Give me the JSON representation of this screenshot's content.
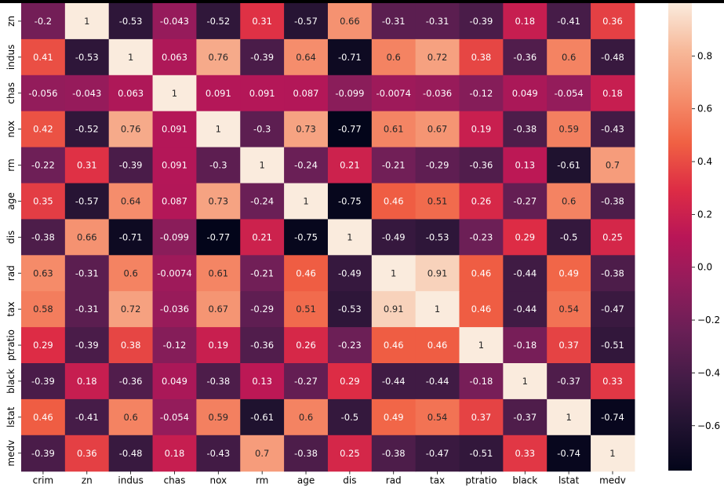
{
  "chart_data": {
    "type": "heatmap",
    "title": "",
    "xlabel": "",
    "ylabel": "",
    "x_labels": [
      "crim",
      "zn",
      "indus",
      "chas",
      "nox",
      "rm",
      "age",
      "dis",
      "rad",
      "tax",
      "ptratio",
      "black",
      "lstat",
      "medv"
    ],
    "y_labels": [
      "zn",
      "indus",
      "chas",
      "nox",
      "rm",
      "age",
      "dis",
      "rad",
      "tax",
      "ptratio",
      "black",
      "lstat",
      "medv"
    ],
    "values": [
      [
        "-0.2",
        "1",
        "-0.53",
        "-0.043",
        "-0.52",
        "0.31",
        "-0.57",
        "0.66",
        "-0.31",
        "-0.31",
        "-0.39",
        "0.18",
        "-0.41",
        "0.36"
      ],
      [
        "0.41",
        "-0.53",
        "1",
        "0.063",
        "0.76",
        "-0.39",
        "0.64",
        "-0.71",
        "0.6",
        "0.72",
        "0.38",
        "-0.36",
        "0.6",
        "-0.48"
      ],
      [
        "-0.056",
        "-0.043",
        "0.063",
        "1",
        "0.091",
        "0.091",
        "0.087",
        "-0.099",
        "-0.0074",
        "-0.036",
        "-0.12",
        "0.049",
        "-0.054",
        "0.18"
      ],
      [
        "0.42",
        "-0.52",
        "0.76",
        "0.091",
        "1",
        "-0.3",
        "0.73",
        "-0.77",
        "0.61",
        "0.67",
        "0.19",
        "-0.38",
        "0.59",
        "-0.43"
      ],
      [
        "-0.22",
        "0.31",
        "-0.39",
        "0.091",
        "-0.3",
        "1",
        "-0.24",
        "0.21",
        "-0.21",
        "-0.29",
        "-0.36",
        "0.13",
        "-0.61",
        "0.7"
      ],
      [
        "0.35",
        "-0.57",
        "0.64",
        "0.087",
        "0.73",
        "-0.24",
        "1",
        "-0.75",
        "0.46",
        "0.51",
        "0.26",
        "-0.27",
        "0.6",
        "-0.38"
      ],
      [
        "-0.38",
        "0.66",
        "-0.71",
        "-0.099",
        "-0.77",
        "0.21",
        "-0.75",
        "1",
        "-0.49",
        "-0.53",
        "-0.23",
        "0.29",
        "-0.5",
        "0.25"
      ],
      [
        "0.63",
        "-0.31",
        "0.6",
        "-0.0074",
        "0.61",
        "-0.21",
        "0.46",
        "-0.49",
        "1",
        "0.91",
        "0.46",
        "-0.44",
        "0.49",
        "-0.38"
      ],
      [
        "0.58",
        "-0.31",
        "0.72",
        "-0.036",
        "0.67",
        "-0.29",
        "0.51",
        "-0.53",
        "0.91",
        "1",
        "0.46",
        "-0.44",
        "0.54",
        "-0.47"
      ],
      [
        "0.29",
        "-0.39",
        "0.38",
        "-0.12",
        "0.19",
        "-0.36",
        "0.26",
        "-0.23",
        "0.46",
        "0.46",
        "1",
        "-0.18",
        "0.37",
        "-0.51"
      ],
      [
        "-0.39",
        "0.18",
        "-0.36",
        "0.049",
        "-0.38",
        "0.13",
        "-0.27",
        "0.29",
        "-0.44",
        "-0.44",
        "-0.18",
        "1",
        "-0.37",
        "0.33"
      ],
      [
        "0.46",
        "-0.41",
        "0.6",
        "-0.054",
        "0.59",
        "-0.61",
        "0.6",
        "-0.5",
        "0.49",
        "0.54",
        "0.37",
        "-0.37",
        "1",
        "-0.74"
      ],
      [
        "-0.39",
        "0.36",
        "-0.48",
        "0.18",
        "-0.43",
        "0.7",
        "-0.38",
        "0.25",
        "-0.38",
        "-0.47",
        "-0.51",
        "0.33",
        "-0.74",
        "1"
      ]
    ],
    "colorbar": {
      "vmin": -0.77,
      "vmax": 1.0,
      "ticks": [
        "0.8",
        "0.6",
        "0.4",
        "0.2",
        "0.0",
        "−0.2",
        "−0.4",
        "−0.6"
      ]
    },
    "colormap_stops": [
      "#03051a",
      "#221331",
      "#451c47",
      "#6a1f56",
      "#921c5b",
      "#b91657",
      "#dd2c45",
      "#f06043",
      "#f58f6d",
      "#f7b99a",
      "#faebdd"
    ],
    "grid": false,
    "legend": "colorbar-right"
  }
}
